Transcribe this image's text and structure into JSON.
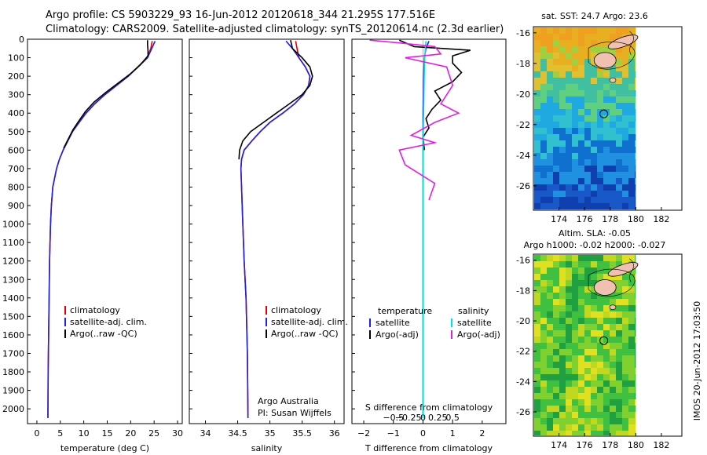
{
  "header": {
    "title_line1": "Argo profile: CS 5903229_93 16-Jun-2012 20120618_344 21.295S 177.516E",
    "title_line2": "Climatology: CARS2009. Satellite-adjusted climatology: synTS_20120614.nc (2.3d earlier)"
  },
  "colors": {
    "climatology": "#e00000",
    "satellite": "#2020e0",
    "argo": "#000000",
    "argo_adj_s": "#e020e0",
    "satellite_s": "#00e0e0"
  },
  "chart_data": [
    {
      "type": "line",
      "id": "temperature",
      "xlabel": "temperature (deg C)",
      "ylabel": "",
      "xlim": [
        -2,
        31
      ],
      "ylim": [
        2080,
        0
      ],
      "x_ticks": [
        0,
        5,
        10,
        15,
        20,
        25,
        30
      ],
      "y_ticks": [
        0,
        100,
        200,
        300,
        400,
        500,
        600,
        700,
        800,
        900,
        1000,
        1100,
        1200,
        1300,
        1400,
        1500,
        1600,
        1700,
        1800,
        1900,
        2000
      ],
      "legend": [
        "climatology",
        "satellite-adj. clim.",
        "Argo(..raw -QC)"
      ],
      "legend_position": "lower-center",
      "series": [
        {
          "name": "climatology",
          "color_key": "climatology",
          "x": [
            24.6,
            24.3,
            23.5,
            21.5,
            19.5,
            17.0,
            14.5,
            12.3,
            10.5,
            9.0,
            7.6,
            6.6,
            5.6,
            4.8,
            4.2,
            3.8,
            3.4,
            3.1,
            2.9,
            2.7,
            2.6,
            2.5,
            2.4,
            2.35
          ],
          "y": [
            10,
            50,
            100,
            150,
            200,
            250,
            300,
            350,
            400,
            450,
            500,
            550,
            600,
            650,
            700,
            750,
            800,
            900,
            1000,
            1200,
            1400,
            1600,
            1800,
            2050
          ]
        },
        {
          "name": "satellite-adj. clim.",
          "color_key": "satellite",
          "x": [
            25.2,
            24.5,
            23.6,
            21.6,
            19.5,
            17.0,
            14.5,
            12.3,
            10.5,
            9.0,
            7.6,
            6.6,
            5.6,
            4.8,
            4.2,
            3.8,
            3.4,
            3.1,
            2.9,
            2.7,
            2.6,
            2.5,
            2.4,
            2.35
          ],
          "y": [
            10,
            50,
            100,
            150,
            200,
            250,
            300,
            350,
            400,
            450,
            500,
            550,
            600,
            650,
            700,
            750,
            800,
            900,
            1000,
            1200,
            1400,
            1600,
            1800,
            2050
          ]
        },
        {
          "name": "Argo(..raw -QC)",
          "color_key": "argo",
          "x": [
            23.6,
            23.6,
            23.7,
            23.7,
            22.0,
            19.8,
            17.2,
            14.6,
            12.2,
            10.4,
            9.0,
            7.7,
            6.7,
            5.7
          ],
          "y": [
            5,
            30,
            60,
            90,
            140,
            190,
            240,
            290,
            340,
            390,
            440,
            490,
            540,
            590
          ]
        }
      ]
    },
    {
      "type": "line",
      "id": "salinity",
      "xlabel": "salinity",
      "xlim": [
        33.75,
        36.15
      ],
      "ylim": [
        2080,
        0
      ],
      "x_ticks": [
        34,
        34.5,
        35,
        35.5,
        36
      ],
      "legend": [
        "climatology",
        "satellite-adj. clim.",
        "Argo(..raw -QC)"
      ],
      "legend_position": "lower-center",
      "annotations": [
        "Argo Australia",
        "PI: Susan Wijffels"
      ],
      "series": [
        {
          "name": "climatology",
          "color_key": "climatology",
          "x": [
            35.4,
            35.42,
            35.45,
            35.55,
            35.62,
            35.6,
            35.52,
            35.38,
            35.2,
            35.0,
            34.85,
            34.72,
            34.6,
            34.56,
            34.55,
            34.56,
            34.58,
            34.6,
            34.63,
            34.65,
            34.66
          ],
          "y": [
            10,
            50,
            100,
            150,
            200,
            250,
            300,
            350,
            400,
            450,
            500,
            550,
            600,
            650,
            700,
            800,
            1000,
            1200,
            1400,
            1700,
            2050
          ]
        },
        {
          "name": "satellite-adj. clim.",
          "color_key": "satellite",
          "x": [
            35.25,
            35.35,
            35.45,
            35.55,
            35.62,
            35.6,
            35.52,
            35.38,
            35.2,
            35.0,
            34.85,
            34.72,
            34.6,
            34.56,
            34.55,
            34.56,
            34.58,
            34.6,
            34.63,
            34.65,
            34.66
          ],
          "y": [
            10,
            50,
            100,
            150,
            200,
            250,
            300,
            350,
            400,
            450,
            500,
            550,
            600,
            650,
            700,
            800,
            1000,
            1200,
            1400,
            1700,
            2050
          ]
        },
        {
          "name": "Argo(..raw -QC)",
          "color_key": "argo",
          "x": [
            35.32,
            35.35,
            35.5,
            35.62,
            35.66,
            35.62,
            35.5,
            35.3,
            35.1,
            34.9,
            34.7,
            34.58,
            34.53,
            34.52
          ],
          "y": [
            5,
            50,
            100,
            150,
            200,
            250,
            300,
            350,
            400,
            450,
            500,
            550,
            600,
            650
          ]
        }
      ]
    },
    {
      "type": "line",
      "id": "difference",
      "xlabel": "T difference from climatology",
      "xlabel_top": "S difference from climatology",
      "xlim": [
        -2.4,
        2.8
      ],
      "ylim": [
        2080,
        0
      ],
      "x_ticks": [
        -2,
        -1,
        0,
        1,
        2
      ],
      "x_tick_labels": [
        "−2",
        "−1",
        "0",
        "1",
        "2"
      ],
      "s_ticks": [
        -0.5,
        -0.25,
        0,
        0.25,
        0.5
      ],
      "s_tick_labels": [
        "−0.5",
        "−0.25",
        "0",
        "0.25",
        "0.5"
      ],
      "legend_temperature": {
        "heading": "temperature",
        "items": [
          "satellite",
          "Argo(-adj)"
        ]
      },
      "legend_salinity": {
        "heading": "salinity",
        "items": [
          "satellite",
          "Argo(-adj)"
        ]
      },
      "series": [
        {
          "name": "satellite (T)",
          "color_key": "satellite",
          "x": [
            0.2,
            0.1,
            0.05,
            0.02,
            0,
            0,
            0,
            0,
            0
          ],
          "y": [
            10,
            50,
            100,
            200,
            400,
            600,
            800,
            1200,
            2050
          ]
        },
        {
          "name": "Argo(-adj) (T)",
          "color_key": "argo",
          "x": [
            -0.8,
            -0.3,
            1.6,
            1.0,
            1.0,
            1.3,
            1.0,
            0.4,
            0.6,
            0.3,
            0.1,
            0.2,
            0.0,
            0.05
          ],
          "y": [
            5,
            40,
            60,
            90,
            130,
            180,
            230,
            280,
            330,
            380,
            430,
            480,
            530,
            600
          ]
        },
        {
          "name": "satellite (S)",
          "color_key": "satellite_s",
          "x": [
            0.05,
            0.03,
            0.02,
            0.01,
            0,
            0,
            0,
            0
          ],
          "y": [
            10,
            100,
            200,
            400,
            600,
            1000,
            1500,
            2050
          ]
        },
        {
          "name": "Argo(-adj) (S)",
          "color_key": "argo_adj_s",
          "x": [
            -0.9,
            -0.4,
            0.2,
            0.3,
            -0.3,
            0.4,
            0.5,
            0.3,
            0.6,
            0.2,
            -0.2,
            0.2,
            -0.4,
            -0.3,
            0.2,
            0.1
          ],
          "y": [
            5,
            20,
            40,
            80,
            100,
            150,
            250,
            350,
            400,
            450,
            520,
            560,
            600,
            680,
            780,
            870
          ]
        }
      ]
    },
    {
      "type": "heatmap",
      "id": "sst_map",
      "title": "sat. SST: 24.7  Argo: 23.6",
      "xlim": [
        172,
        183.6
      ],
      "ylim": [
        -27.6,
        -15.6
      ],
      "x_ticks": [
        174,
        176,
        178,
        180,
        182
      ],
      "y_ticks": [
        -16,
        -18,
        -20,
        -22,
        -24,
        -26
      ],
      "argo_position": [
        177.5,
        -21.3
      ]
    },
    {
      "type": "heatmap",
      "id": "sla_map",
      "title_line1": "Altim. SLA: -0.05",
      "title_line2": "Argo h1000: -0.02 h2000: -0.027",
      "xlim": [
        172,
        183.6
      ],
      "ylim": [
        -27.6,
        -15.6
      ],
      "x_ticks": [
        174,
        176,
        178,
        180,
        182
      ],
      "y_ticks": [
        -16,
        -18,
        -20,
        -22,
        -24,
        -26
      ],
      "argo_position": [
        177.5,
        -21.3
      ]
    }
  ],
  "footer": {
    "stamp": "IMOS 20-Jun-2012 17:03:50"
  }
}
